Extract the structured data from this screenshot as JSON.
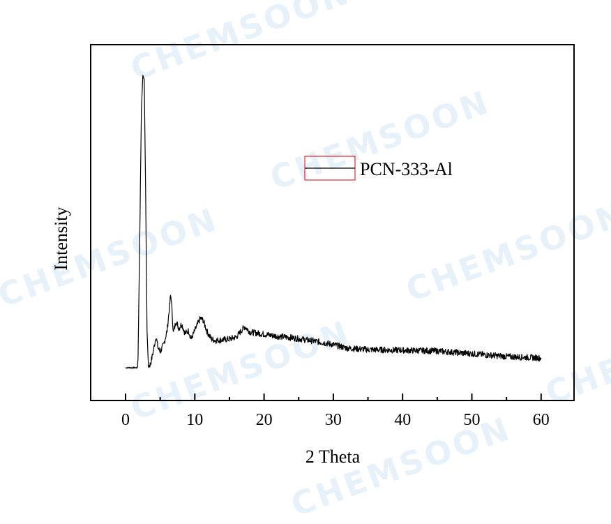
{
  "watermark": {
    "text": "CHEMSOON",
    "color": "#e6f1fa"
  },
  "chart_data": {
    "type": "line",
    "title": "",
    "xlabel": "2 Theta",
    "ylabel": "Intensity",
    "xlim": [
      -5,
      65
    ],
    "ylim": [
      0,
      510
    ],
    "x_ticks": [
      0,
      10,
      20,
      30,
      40,
      50,
      60
    ],
    "x_tick_labels": [
      "0",
      "10",
      "20",
      "30",
      "40",
      "50",
      "60"
    ],
    "y_ticks": [],
    "grid": false,
    "legend_position": "upper center",
    "series": [
      {
        "name": "PCN-333-Al",
        "color": "#000000",
        "legend_box_color": "#e00000",
        "x": [
          0,
          1.7,
          1.8,
          2.0,
          2.3,
          2.5,
          2.7,
          2.9,
          3.1,
          3.3,
          3.6,
          4.0,
          4.4,
          4.7,
          5.0,
          5.5,
          6.0,
          6.5,
          6.6,
          6.9,
          7.3,
          7.7,
          8.1,
          8.6,
          9.1,
          9.5,
          10.2,
          10.8,
          11.2,
          11.8,
          12.4,
          13,
          14,
          15,
          16,
          17.2,
          18,
          20,
          22,
          24,
          26,
          28,
          30,
          32,
          35,
          40,
          45,
          50,
          55,
          60
        ],
        "y": [
          47,
          47,
          60,
          200,
          420,
          466,
          460,
          300,
          100,
          49,
          52,
          70,
          92,
          75,
          70,
          80,
          100,
          150,
          146,
          97,
          114,
          103,
          110,
          96,
          100,
          88,
          105,
          118,
          115,
          98,
          88,
          86,
          87,
          88,
          91,
          106,
          98,
          95,
          92,
          90,
          87,
          84,
          80,
          75,
          73,
          72,
          71,
          67,
          63,
          61
        ]
      }
    ]
  },
  "legend": {
    "label": "PCN-333-Al"
  },
  "axes": {
    "xlabel": "2 Theta",
    "ylabel": "Intensity"
  }
}
